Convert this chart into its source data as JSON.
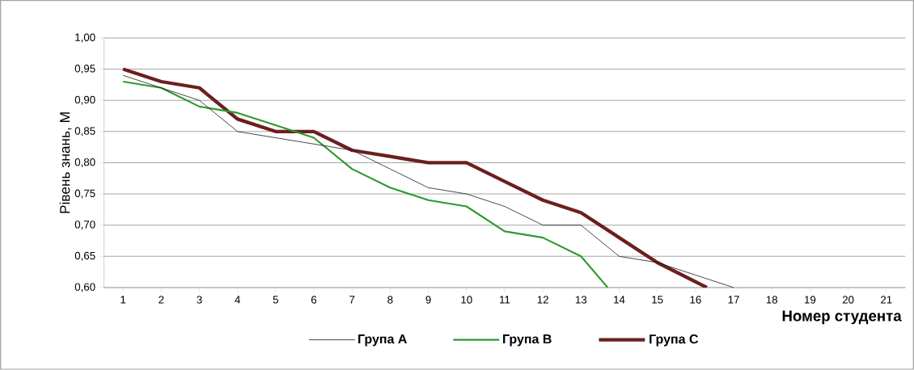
{
  "chart_data": {
    "type": "line",
    "ylabel": "Рівень знань, M",
    "xlabel": "Номер студента",
    "xlim": [
      0.5,
      21.5
    ],
    "xticks": [
      1,
      2,
      3,
      4,
      5,
      6,
      7,
      8,
      9,
      10,
      11,
      12,
      13,
      14,
      15,
      16,
      17,
      18,
      19,
      20,
      21
    ],
    "ylim": [
      0.6,
      1.0
    ],
    "yticks": [
      {
        "value": 0.6,
        "label": "0,60"
      },
      {
        "value": 0.65,
        "label": "0,65"
      },
      {
        "value": 0.7,
        "label": "0,70"
      },
      {
        "value": 0.75,
        "label": "0,75"
      },
      {
        "value": 0.8,
        "label": "0,80"
      },
      {
        "value": 0.85,
        "label": "0,85"
      },
      {
        "value": 0.9,
        "label": "0,90"
      },
      {
        "value": 0.95,
        "label": "0,95"
      },
      {
        "value": 1.0,
        "label": "1,00"
      }
    ],
    "grid": "y",
    "legend": "bottom",
    "marker": "none",
    "line_style": "solid",
    "series": [
      {
        "name": "Група A",
        "color": "#1a1a1a",
        "x": [
          1,
          2,
          3,
          4,
          5,
          6,
          7,
          8,
          9,
          10,
          11,
          12,
          13,
          14,
          15,
          16,
          17
        ],
        "values": [
          0.94,
          0.92,
          0.9,
          0.85,
          0.84,
          0.83,
          0.82,
          0.79,
          0.76,
          0.75,
          0.73,
          0.7,
          0.7,
          0.65,
          0.64,
          0.62,
          0.6
        ]
      },
      {
        "name": "Група B",
        "color": "#2e9a2e",
        "x": [
          1,
          2,
          3,
          4,
          5,
          6,
          7,
          8,
          9,
          10,
          11,
          12,
          13,
          13.7
        ],
        "values": [
          0.93,
          0.92,
          0.89,
          0.88,
          0.86,
          0.84,
          0.79,
          0.76,
          0.74,
          0.73,
          0.69,
          0.68,
          0.65,
          0.6
        ]
      },
      {
        "name": "Група C",
        "color": "#6b1f1f",
        "x": [
          1,
          2,
          3,
          4,
          5,
          6,
          7,
          8,
          9,
          10,
          11,
          12,
          13,
          14,
          15,
          16.3
        ],
        "values": [
          0.95,
          0.93,
          0.92,
          0.87,
          0.85,
          0.85,
          0.82,
          0.81,
          0.8,
          0.8,
          0.77,
          0.74,
          0.72,
          0.68,
          0.64,
          0.6
        ]
      }
    ]
  }
}
